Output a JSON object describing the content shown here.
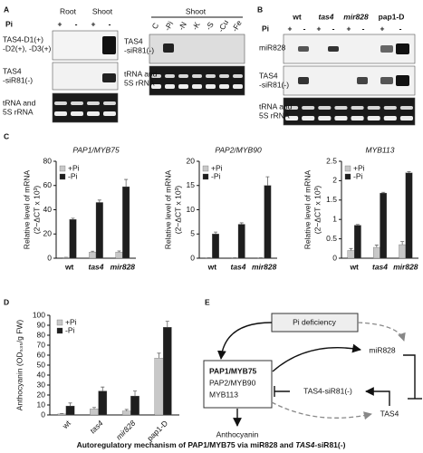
{
  "panel_labels": [
    "A",
    "B",
    "C",
    "D",
    "E"
  ],
  "panel_a": {
    "left": {
      "groups": [
        "Root",
        "Shoot"
      ],
      "pi_label": "Pi",
      "pi_signs": [
        "+",
        "-",
        "+",
        "-"
      ],
      "rows": [
        [
          "TAS4-D1(+)",
          "-D2(+), -D3(+)"
        ],
        [
          "TAS4",
          "-siR81(-)"
        ],
        [
          "tRNA and",
          "5S rRNA"
        ]
      ]
    },
    "right": {
      "title": "Shoot",
      "lanes": [
        "C",
        "-Pi",
        "-N",
        "-K",
        "-S",
        "-Cu",
        "-Fe"
      ],
      "rows": [
        [
          "TAS4",
          "-siR81(-)"
        ],
        [
          "tRNA and",
          "5S rRNA"
        ]
      ]
    }
  },
  "panel_b": {
    "lanes": [
      "wt",
      "tas4",
      "mir828",
      "pap1-D"
    ],
    "pi_label": "Pi",
    "pi_signs": [
      "+",
      "-",
      "+",
      "-",
      "+",
      "-",
      "+",
      "-"
    ],
    "rows": [
      [
        "miR828"
      ],
      [
        "TAS4",
        "-siR81(-)"
      ],
      [
        "tRNA and",
        "5S rRNA"
      ]
    ]
  },
  "chart_data": [
    {
      "type": "bar",
      "title": "PAP1/MYB75",
      "ylabel": [
        "Relative level of  mRNA",
        "(2−ΔCT x 10³)"
      ],
      "categories": [
        "wt",
        "tas4",
        "mir828"
      ],
      "ylim": [
        0,
        80
      ],
      "yticks": [
        0,
        20,
        40,
        60,
        80
      ],
      "series": [
        {
          "name": "+Pi",
          "color": "#c8c8c8",
          "values": [
            0.5,
            5,
            5
          ],
          "errors": [
            0.2,
            0.8,
            1
          ]
        },
        {
          "name": "-Pi",
          "color": "#1e1e1e",
          "values": [
            32,
            46,
            59
          ],
          "errors": [
            1,
            2,
            6
          ]
        }
      ]
    },
    {
      "type": "bar",
      "title": "PAP2/MYB90",
      "ylabel": [
        "Relative level of  mRNA",
        "(2−ΔCT x 10³)"
      ],
      "categories": [
        "wt",
        "tas4",
        "mir828"
      ],
      "ylim": [
        0,
        20
      ],
      "yticks": [
        0,
        5,
        10,
        15,
        20
      ],
      "series": [
        {
          "name": "+Pi",
          "color": "#c8c8c8",
          "values": [
            0.1,
            0.1,
            0.1
          ],
          "errors": [
            0,
            0,
            0
          ]
        },
        {
          "name": "-Pi",
          "color": "#1e1e1e",
          "values": [
            5,
            7,
            15
          ],
          "errors": [
            0.4,
            0.3,
            1.8
          ]
        }
      ]
    },
    {
      "type": "bar",
      "title": "MYB113",
      "ylabel": [
        "Relative level of  mRNA",
        "(2−ΔCT x 10³)"
      ],
      "categories": [
        "wt",
        "tas4",
        "mir828"
      ],
      "ylim": [
        0,
        2.5
      ],
      "yticks": [
        0,
        0.5,
        1,
        1.5,
        2,
        2.5
      ],
      "series": [
        {
          "name": "+Pi",
          "color": "#c8c8c8",
          "values": [
            0.2,
            0.28,
            0.35
          ],
          "errors": [
            0.05,
            0.06,
            0.08
          ]
        },
        {
          "name": "-Pi",
          "color": "#1e1e1e",
          "values": [
            0.85,
            1.68,
            2.2
          ],
          "errors": [
            0.02,
            0.02,
            0.03
          ]
        }
      ]
    },
    {
      "type": "bar",
      "ylabel": [
        "Anthocyanin (OD₅₃₅/g FW)"
      ],
      "categories": [
        "wt",
        "tas4",
        "mir828",
        "pap1-D"
      ],
      "ylim": [
        0,
        100
      ],
      "yticks": [
        0,
        10,
        20,
        30,
        40,
        50,
        60,
        70,
        80,
        90,
        100
      ],
      "series": [
        {
          "name": "+Pi",
          "color": "#c8c8c8",
          "values": [
            1,
            6,
            4,
            57
          ],
          "errors": [
            0.5,
            1.5,
            1.5,
            5
          ]
        },
        {
          "name": "-Pi",
          "color": "#1e1e1e",
          "values": [
            9,
            24,
            19,
            88
          ],
          "errors": [
            3,
            4,
            5,
            6
          ]
        }
      ]
    }
  ],
  "panel_e": {
    "pi_deficiency": "Pi deficiency",
    "box": [
      "PAP1/MYB75",
      "PAP2/MYB90",
      "MYB113"
    ],
    "mir828": "miR828",
    "tas4_sir81": "TAS4-siR81(-)",
    "tas4": "TAS4",
    "anthocyanin": "Anthocyanin"
  },
  "caption": [
    "Autoregulatory mechanism of PAP1/MYB75 via miR828 and ",
    "TAS4",
    "-siR81(-)"
  ]
}
